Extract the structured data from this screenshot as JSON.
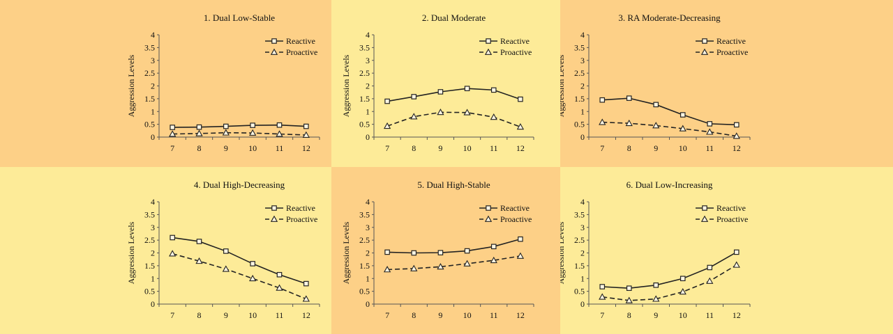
{
  "colors": {
    "orange_bg": "#fdd087",
    "yellow_bg": "#fdeb98",
    "line": "#222222"
  },
  "chart_data": [
    {
      "type": "line",
      "title": "1. Dual Low-Stable",
      "ylabel": "Aggression Levels",
      "background": "orange",
      "x": [
        7,
        8,
        9,
        10,
        11,
        12
      ],
      "ylim": [
        0,
        4
      ],
      "yticks": [
        "0",
        "0.5",
        "1",
        "1.5",
        "2",
        "2.5",
        "3",
        "3.5",
        "4"
      ],
      "legend_position": "top-right",
      "series": [
        {
          "name": "Reactive",
          "marker": "square",
          "style": "solid",
          "values": [
            0.38,
            0.39,
            0.42,
            0.46,
            0.47,
            0.42
          ]
        },
        {
          "name": "Proactive",
          "marker": "triangle",
          "style": "dashed",
          "values": [
            0.12,
            0.14,
            0.17,
            0.16,
            0.12,
            0.08
          ]
        }
      ]
    },
    {
      "type": "line",
      "title": "2. Dual Moderate",
      "ylabel": "Aggression Levels",
      "background": "yellow",
      "x": [
        7,
        8,
        9,
        10,
        11,
        12
      ],
      "ylim": [
        0,
        4
      ],
      "yticks": [
        "0",
        "0.5",
        "1",
        "1.5",
        "2",
        "2.5",
        "3",
        "3.5",
        "4"
      ],
      "legend_position": "top-right",
      "series": [
        {
          "name": "Reactive",
          "marker": "square",
          "style": "solid",
          "values": [
            1.4,
            1.58,
            1.77,
            1.9,
            1.84,
            1.48
          ]
        },
        {
          "name": "Proactive",
          "marker": "triangle",
          "style": "dashed",
          "values": [
            0.43,
            0.8,
            0.97,
            0.96,
            0.78,
            0.4
          ]
        }
      ]
    },
    {
      "type": "line",
      "title": "3. RA Moderate-Decreasing",
      "ylabel": "Aggression Levels",
      "background": "orange",
      "x": [
        7,
        8,
        9,
        10,
        11,
        12
      ],
      "ylim": [
        0,
        4
      ],
      "yticks": [
        "0",
        "0.5",
        "1",
        "1.5",
        "2",
        "2.5",
        "3",
        "3.5",
        "4"
      ],
      "legend_position": "top-right",
      "series": [
        {
          "name": "Reactive",
          "marker": "square",
          "style": "solid",
          "values": [
            1.45,
            1.52,
            1.27,
            0.87,
            0.52,
            0.48
          ]
        },
        {
          "name": "Proactive",
          "marker": "triangle",
          "style": "dashed",
          "values": [
            0.58,
            0.54,
            0.45,
            0.33,
            0.2,
            0.04
          ]
        }
      ]
    },
    {
      "type": "line",
      "title": "4. Dual High-Decreasing",
      "ylabel": "Aggression Levels",
      "background": "yellow",
      "x": [
        7,
        8,
        9,
        10,
        11,
        12
      ],
      "ylim": [
        0,
        4
      ],
      "yticks": [
        "0",
        "0.5",
        "1",
        "1.5",
        "2",
        "2.5",
        "3",
        "3.5",
        "4"
      ],
      "legend_position": "top-right",
      "series": [
        {
          "name": "Reactive",
          "marker": "square",
          "style": "solid",
          "values": [
            2.6,
            2.45,
            2.07,
            1.58,
            1.15,
            0.8
          ]
        },
        {
          "name": "Proactive",
          "marker": "triangle",
          "style": "dashed",
          "values": [
            1.97,
            1.68,
            1.37,
            1.0,
            0.63,
            0.2
          ]
        }
      ]
    },
    {
      "type": "line",
      "title": "5. Dual High-Stable",
      "ylabel": "Aggression Levels",
      "background": "orange",
      "x": [
        7,
        8,
        9,
        10,
        11,
        12
      ],
      "ylim": [
        0,
        4
      ],
      "yticks": [
        "0",
        "0.5",
        "1",
        "1.5",
        "2",
        "2.5",
        "3",
        "3.5",
        "4"
      ],
      "legend_position": "top-right",
      "series": [
        {
          "name": "Reactive",
          "marker": "square",
          "style": "solid",
          "values": [
            2.03,
            2.0,
            2.01,
            2.08,
            2.25,
            2.54
          ]
        },
        {
          "name": "Proactive",
          "marker": "triangle",
          "style": "dashed",
          "values": [
            1.35,
            1.39,
            1.46,
            1.58,
            1.71,
            1.88
          ]
        }
      ]
    },
    {
      "type": "line",
      "title": "6. Dual Low-Increasing",
      "ylabel": "Aggression Levels",
      "background": "yellow",
      "x": [
        7,
        8,
        9,
        10,
        11,
        12
      ],
      "ylim": [
        0,
        4
      ],
      "yticks": [
        "0",
        "0.5",
        "1",
        "1.5",
        "2",
        "2.5",
        "3",
        "3.5",
        "4"
      ],
      "legend_position": "top-right",
      "series": [
        {
          "name": "Reactive",
          "marker": "square",
          "style": "solid",
          "values": [
            0.68,
            0.62,
            0.74,
            1.0,
            1.43,
            2.03
          ]
        },
        {
          "name": "Proactive",
          "marker": "triangle",
          "style": "dashed",
          "values": [
            0.28,
            0.14,
            0.2,
            0.48,
            0.9,
            1.53
          ]
        }
      ]
    }
  ]
}
